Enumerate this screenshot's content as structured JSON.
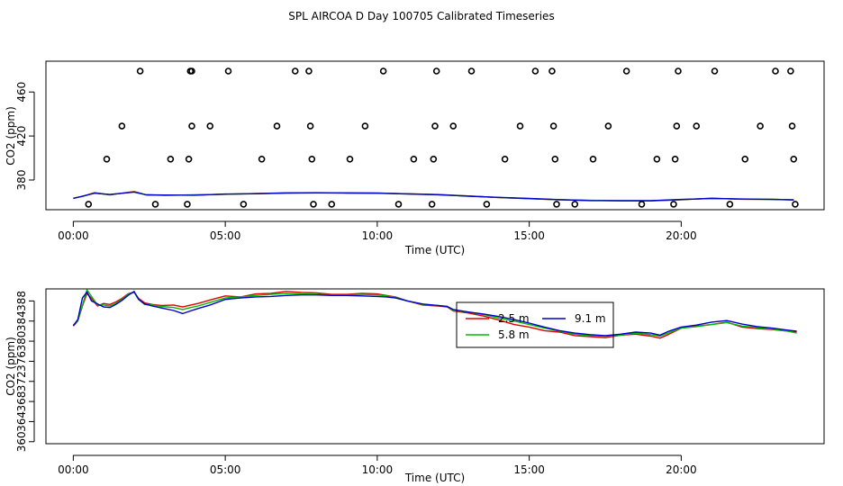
{
  "figure_title": "SPL AIRCOA D  Day 100705  Calibrated Timeseries",
  "colors": {
    "2.5 m": "#dd0000",
    "5.8 m": "#00bb00",
    "9.1 m": "#0000cc"
  },
  "chart_data": [
    {
      "type": "line",
      "title": "SPL AIRCOA D  Day 100705  Calibrated Timeseries",
      "xlabel": "Time (UTC)",
      "ylabel": "CO2 (ppm)",
      "xlim": [
        -0.9,
        24.7
      ],
      "ylim": [
        353,
        488
      ],
      "xticks": [
        0,
        5,
        10,
        15,
        20
      ],
      "xtick_labels": [
        "00:00",
        "05:00",
        "10:00",
        "15:00",
        "20:00"
      ],
      "yticks": [
        380,
        420,
        460
      ],
      "ytick_labels": [
        "380",
        "420",
        "460"
      ],
      "series": [
        {
          "name": "2.5 m",
          "x": [
            0,
            0.3,
            0.7,
            1.2,
            2,
            2.4,
            3,
            4,
            5,
            6,
            7,
            8,
            9,
            10,
            11,
            12,
            13,
            14,
            15,
            16,
            17,
            18,
            19,
            20,
            21,
            22,
            23,
            23.7
          ],
          "values": [
            363.5,
            365,
            368.5,
            366.5,
            369.5,
            366.5,
            366,
            366.5,
            367,
            367.8,
            368.3,
            368.5,
            368.3,
            368.2,
            367.5,
            366.8,
            365.5,
            364,
            363,
            362,
            361.5,
            361,
            361,
            362,
            363.5,
            362.5,
            362.5,
            362
          ]
        },
        {
          "name": "5.8 m",
          "x": [
            0,
            0.3,
            0.7,
            1.2,
            2,
            2.4,
            3,
            4,
            5,
            6,
            7,
            8,
            9,
            10,
            11,
            12,
            13,
            14,
            15,
            16,
            17,
            18,
            19,
            20,
            21,
            22,
            23,
            23.7
          ],
          "values": [
            363.3,
            365.2,
            368.2,
            366.7,
            369.2,
            366.6,
            366.2,
            366.3,
            367.1,
            367.6,
            368.2,
            368.4,
            368.2,
            368.1,
            367.4,
            366.7,
            365.4,
            364.1,
            363.1,
            362.1,
            361.4,
            361.2,
            361.1,
            362.2,
            363.3,
            362.6,
            362.4,
            361.9
          ]
        },
        {
          "name": "9.1 m",
          "x": [
            0,
            0.3,
            0.7,
            1.2,
            2,
            2.4,
            3,
            4,
            5,
            6,
            7,
            8,
            9,
            10,
            11,
            12,
            13,
            14,
            15,
            16,
            17,
            18,
            19,
            20,
            21,
            22,
            23,
            23.7
          ],
          "values": [
            363.2,
            365.3,
            368,
            366.8,
            369,
            366.5,
            366.3,
            366.2,
            367.2,
            367.5,
            368.1,
            368.3,
            368.1,
            368,
            367.3,
            366.6,
            365.3,
            364.2,
            363.2,
            362.2,
            361.3,
            361.3,
            361.2,
            362.3,
            363.2,
            362.7,
            362.3,
            361.8
          ]
        }
      ],
      "outliers": {
        "x": [
          0.5,
          1.1,
          1.6,
          2.2,
          2.7,
          3.2,
          3.75,
          3.8,
          3.9,
          3.85,
          3.9,
          4.5,
          5.1,
          5.6,
          6.2,
          6.7,
          7.3,
          7.75,
          7.8,
          7.85,
          7.9,
          8.5,
          9.1,
          9.6,
          10.2,
          10.7,
          11.2,
          11.8,
          11.85,
          11.9,
          11.95,
          12.5,
          13.1,
          13.6,
          14.2,
          14.7,
          15.2,
          15.75,
          15.8,
          15.85,
          15.9,
          16.5,
          17.1,
          17.6,
          18.2,
          18.7,
          19.2,
          19.75,
          19.8,
          19.85,
          19.9,
          20.5,
          21.1,
          21.6,
          22.1,
          22.6,
          23.1,
          23.6,
          23.65,
          23.7,
          23.75
        ],
        "values": [
          358,
          399,
          429,
          479,
          358,
          399,
          358,
          399,
          429,
          479,
          479,
          429,
          479,
          358,
          399,
          429,
          479,
          479,
          429,
          399,
          358,
          358,
          399,
          429,
          479,
          358,
          399,
          358,
          399,
          429,
          479,
          429,
          479,
          358,
          399,
          429,
          479,
          479,
          429,
          399,
          358,
          358,
          399,
          429,
          479,
          358,
          399,
          358,
          399,
          429,
          479,
          429,
          479,
          358,
          399,
          429,
          479,
          479,
          429,
          399,
          358
        ]
      }
    },
    {
      "type": "line",
      "title": "",
      "xlabel": "Time (UTC)",
      "ylabel": "CO2 (ppm)",
      "xlim": [
        -0.9,
        24.7
      ],
      "ylim": [
        359.6,
        390.4
      ],
      "xticks": [
        0,
        5,
        10,
        15,
        20
      ],
      "xtick_labels": [
        "00:00",
        "05:00",
        "10:00",
        "15:00",
        "20:00"
      ],
      "yticks": [
        360,
        364,
        368,
        372,
        376,
        380,
        384,
        388
      ],
      "ytick_labels": [
        "360",
        "364",
        "368",
        "372",
        "376",
        "380",
        "384",
        "388"
      ],
      "legend": {
        "entries": [
          "2.5 m",
          "5.8 m",
          "9.1 m"
        ],
        "position": "top-right-of-center"
      },
      "series": [
        {
          "name": "2.5 m",
          "x": [
            0,
            0.15,
            0.3,
            0.45,
            0.6,
            0.8,
            1.0,
            1.2,
            1.4,
            1.6,
            1.8,
            2.0,
            2.15,
            2.35,
            2.6,
            2.9,
            3.3,
            3.6,
            3.8,
            4.1,
            4.5,
            5.0,
            5.5,
            6.0,
            6.5,
            7.0,
            7.5,
            8.0,
            8.5,
            9.0,
            9.5,
            10.0,
            10.3,
            10.6,
            11.0,
            11.5,
            12.0,
            12.3,
            12.5,
            13.0,
            13.5,
            14.0,
            14.5,
            15.0,
            15.5,
            16.0,
            16.5,
            17.0,
            17.5,
            18.0,
            18.5,
            19.0,
            19.3,
            19.6,
            20.0,
            20.5,
            21.0,
            21.5,
            22.0,
            22.5,
            23.0,
            23.5,
            23.8
          ],
          "values": [
            383,
            384,
            387,
            389.5,
            388.5,
            387,
            387.5,
            387.3,
            387.8,
            388.5,
            389.4,
            389.8,
            388.5,
            387.6,
            387.3,
            387.1,
            387.2,
            386.8,
            387.1,
            387.5,
            388.2,
            389,
            388.8,
            389.4,
            389.5,
            389.9,
            389.7,
            389.6,
            389.3,
            389.3,
            389.5,
            389.4,
            389.1,
            388.8,
            388,
            387.2,
            387,
            386.8,
            386,
            385.6,
            385,
            384.2,
            383.3,
            382.8,
            382.1,
            381.8,
            381.1,
            380.9,
            380.7,
            381.2,
            381.4,
            381,
            380.6,
            381.4,
            382.6,
            383,
            383.3,
            383.8,
            382.8,
            382.5,
            382.3,
            382,
            381.8
          ]
        },
        {
          "name": "5.8 m",
          "x": [
            0,
            0.15,
            0.3,
            0.45,
            0.6,
            0.8,
            1.0,
            1.2,
            1.4,
            1.6,
            1.8,
            2.0,
            2.15,
            2.35,
            2.6,
            2.9,
            3.3,
            3.6,
            3.8,
            4.1,
            4.5,
            5.0,
            5.5,
            6.0,
            6.5,
            7.0,
            7.5,
            8.0,
            8.5,
            9.0,
            9.5,
            10.0,
            10.3,
            10.6,
            11.0,
            11.5,
            12.0,
            12.3,
            12.5,
            13.0,
            13.5,
            14.0,
            14.5,
            15.0,
            15.5,
            16.0,
            16.5,
            17.0,
            17.5,
            18.0,
            18.5,
            19.0,
            19.3,
            19.6,
            20.0,
            20.5,
            21.0,
            21.5,
            22.0,
            22.5,
            23.0,
            23.5,
            23.8
          ],
          "values": [
            383.2,
            384.1,
            387.2,
            390.2,
            388.9,
            387.2,
            387.2,
            387,
            387.5,
            388.3,
            389.3,
            389.7,
            388.3,
            387.3,
            387.2,
            386.9,
            386.7,
            386.3,
            386.6,
            387,
            387.7,
            388.6,
            388.8,
            389.1,
            389.3,
            389.5,
            389.4,
            389.3,
            389.2,
            389.2,
            389.3,
            389.2,
            389,
            388.7,
            388,
            387.3,
            387.1,
            386.9,
            386.1,
            385.8,
            385.3,
            384.6,
            384,
            383.3,
            382.6,
            382,
            381.4,
            381.1,
            381,
            381.2,
            381.6,
            381.3,
            381,
            381.7,
            382.6,
            382.9,
            383.3,
            383.7,
            383,
            382.7,
            382.4,
            382,
            381.6
          ]
        },
        {
          "name": "9.1 m",
          "x": [
            0,
            0.15,
            0.3,
            0.45,
            0.6,
            0.8,
            1.0,
            1.2,
            1.4,
            1.6,
            1.8,
            2.0,
            2.15,
            2.35,
            2.6,
            2.9,
            3.3,
            3.6,
            3.8,
            4.1,
            4.5,
            5.0,
            5.5,
            6.0,
            6.5,
            7.0,
            7.5,
            8.0,
            8.5,
            9.0,
            9.5,
            10.0,
            10.3,
            10.6,
            11.0,
            11.5,
            12.0,
            12.3,
            12.5,
            13.0,
            13.5,
            14.0,
            14.5,
            15.0,
            15.5,
            16.0,
            16.5,
            17.0,
            17.5,
            18.0,
            18.5,
            19.0,
            19.3,
            19.6,
            20.0,
            20.5,
            21.0,
            21.5,
            22.0,
            22.5,
            23.0,
            23.5,
            23.8
          ],
          "values": [
            383.1,
            384.3,
            388.6,
            389.8,
            388,
            387.4,
            386.8,
            386.7,
            387.3,
            388.1,
            389.1,
            389.9,
            388.3,
            387.4,
            387,
            386.6,
            386.1,
            385.5,
            385.9,
            386.5,
            387.2,
            388.3,
            388.6,
            388.8,
            388.9,
            389.1,
            389.2,
            389.2,
            389.1,
            389.1,
            389,
            388.9,
            388.8,
            388.6,
            388,
            387.4,
            387.1,
            386.9,
            386.3,
            385.8,
            385.4,
            384.9,
            384.3,
            383.6,
            382.8,
            382.1,
            381.6,
            381.3,
            381.1,
            381.4,
            381.8,
            381.6,
            381.2,
            382,
            382.8,
            383.2,
            383.8,
            384.1,
            383.4,
            382.9,
            382.6,
            382.2,
            382
          ]
        }
      ]
    }
  ]
}
